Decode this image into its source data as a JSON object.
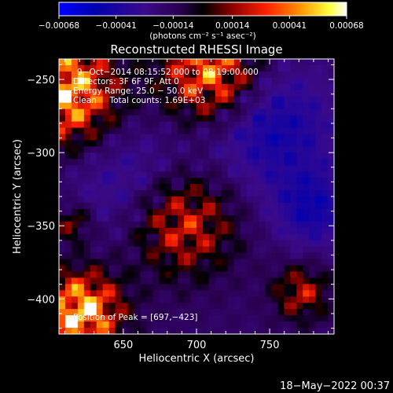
{
  "chart_data": {
    "type": "heatmap",
    "title": "Reconstructed RHESSI Image",
    "xlabel": "Heliocentric X (arcsec)",
    "ylabel": "Heliocentric Y (arcsec)",
    "xlim": [
      606,
      794
    ],
    "ylim": [
      -424,
      -236
    ],
    "x_ticks": [
      650,
      700,
      750
    ],
    "y_ticks": [
      -250,
      -300,
      -350,
      -400
    ],
    "x_tick_labels": [
      "650",
      "700",
      "750"
    ],
    "y_tick_labels": [
      "−250",
      "−300",
      "−350",
      "−400"
    ],
    "colorbar": {
      "range": [
        -0.00068,
        0.00068
      ],
      "ticks": [
        -0.00068,
        -0.00041,
        -0.00014,
        0.00014,
        0.00041,
        0.00068
      ],
      "tick_labels": [
        "−0.00068",
        "−0.00041",
        "−0.00014",
        "0.00014",
        "0.00041",
        "0.00068"
      ],
      "unit_label": "(photons cm⁻² s⁻¹ asec⁻²)"
    },
    "annotations": [
      "9−Oct−2014 08:15:52.000 to 08:19:00.000",
      "Detectors: 3F 6F 9F, Att 0",
      "Energy Range: 25.0 − 50.0 keV",
      "Clean     Total counts: 1.69E+03",
      "Position of Peak = [697,−423]"
    ],
    "peak": [
      697,
      -423
    ],
    "footer": "18−May−2022 00:37"
  }
}
